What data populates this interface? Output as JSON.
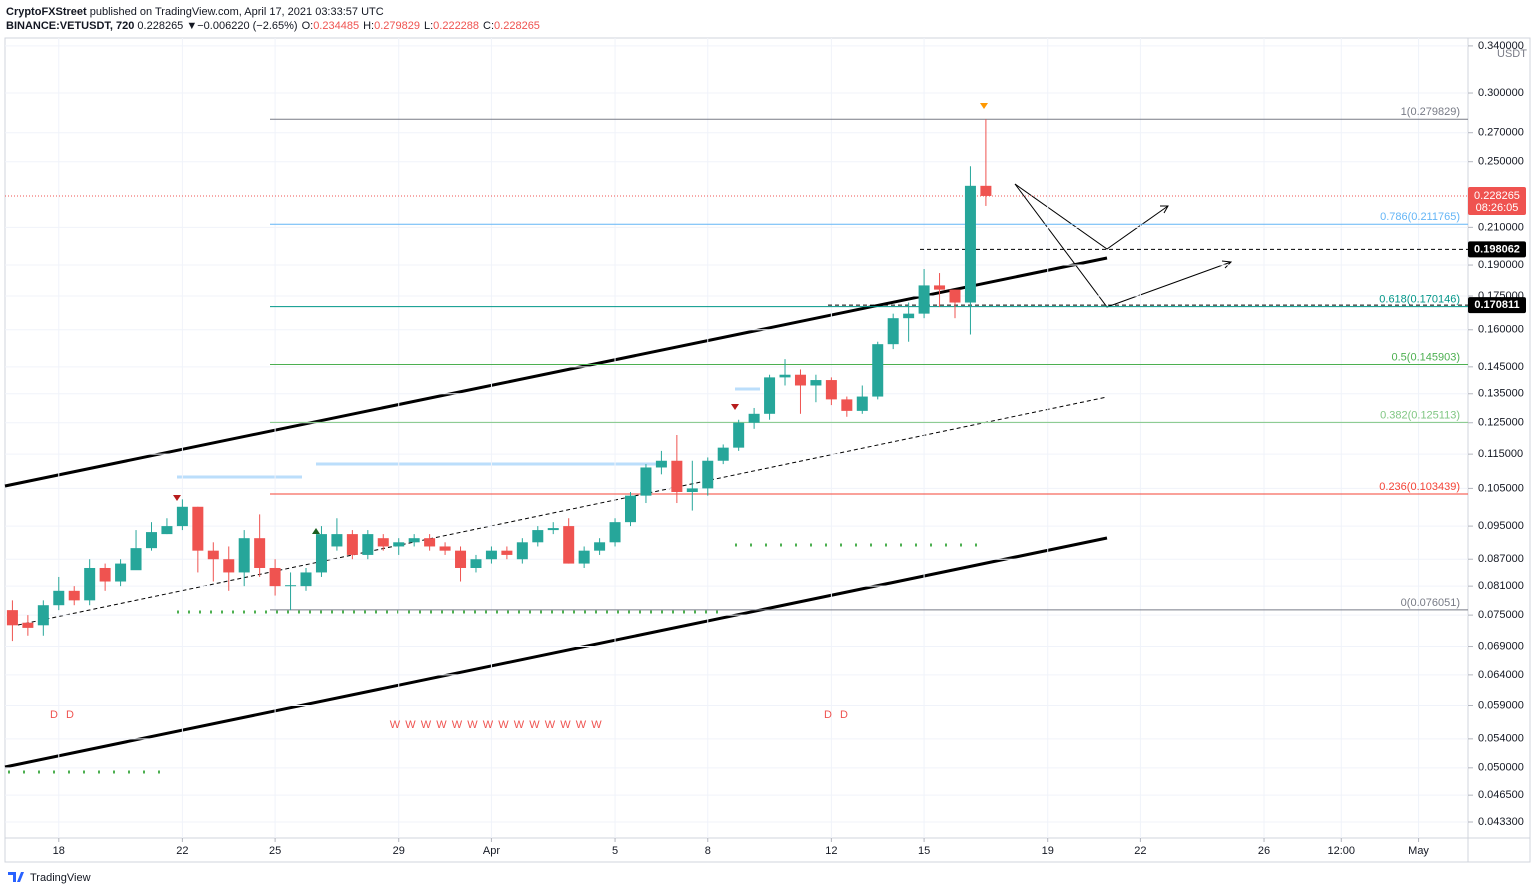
{
  "header": {
    "author": "CryptoFXStreet",
    "published": "published on TradingView.com, April 17, 2021 03:33:57 UTC",
    "symbol": "BINANCE:VETUSDT, 720",
    "last": "0.228265",
    "change": "▼−0.006220 (−2.65%)",
    "ohlc": [
      {
        "key": "O:",
        "value": "0.234485"
      },
      {
        "key": "H:",
        "value": "0.279829"
      },
      {
        "key": "L:",
        "value": "0.222288"
      },
      {
        "key": "C:",
        "value": "0.228265"
      }
    ]
  },
  "chart_data": {
    "type": "candlestick",
    "currency": "USDT",
    "log": true,
    "grid": true,
    "up_color": "#26a69a",
    "down_color": "#ef5350",
    "x": [
      -1.5,
      -1,
      -0.5,
      0,
      0.5,
      1,
      1.5,
      2,
      2.5,
      3,
      3.5,
      4,
      4.5,
      5,
      5.5,
      6,
      6.5,
      7,
      7.5,
      8,
      8.5,
      9,
      9.5,
      10,
      10.5,
      11,
      11.5,
      12,
      12.5,
      13,
      13.5,
      14,
      14.5,
      15,
      15.5,
      16,
      16.5,
      17,
      17.5,
      18,
      18.5,
      19,
      19.5,
      20,
      20.5,
      21,
      21.5,
      22,
      22.5,
      23,
      23.5,
      24,
      24.5,
      25,
      25.5,
      26,
      26.5,
      27,
      27.5,
      28,
      28.5,
      29,
      29.5,
      30
    ],
    "open": [
      0.076,
      0.0735,
      0.073,
      0.077,
      0.08,
      0.078,
      0.085,
      0.082,
      0.0845,
      0.0896,
      0.093,
      0.095,
      0.1,
      0.089,
      0.087,
      0.084,
      0.092,
      0.085,
      0.081,
      0.081,
      0.084,
      0.09,
      0.093,
      0.088,
      0.092,
      0.09,
      0.091,
      0.092,
      0.09,
      0.089,
      0.085,
      0.087,
      0.089,
      0.087,
      0.091,
      0.094,
      0.095,
      0.086,
      0.089,
      0.091,
      0.096,
      0.103,
      0.111,
      0.113,
      0.104,
      0.105,
      0.113,
      0.117,
      0.125,
      0.128,
      0.141,
      0.142,
      0.138,
      0.14,
      0.133,
      0.129,
      0.134,
      0.154,
      0.165,
      0.167,
      0.18,
      0.178,
      0.172,
      0.234485
    ],
    "high": [
      0.078,
      0.075,
      0.078,
      0.083,
      0.081,
      0.087,
      0.086,
      0.087,
      0.094,
      0.096,
      0.097,
      0.102,
      0.1,
      0.091,
      0.09,
      0.094,
      0.098,
      0.087,
      0.084,
      0.085,
      0.095,
      0.097,
      0.094,
      0.094,
      0.093,
      0.092,
      0.093,
      0.093,
      0.091,
      0.09,
      0.088,
      0.09,
      0.09,
      0.092,
      0.095,
      0.096,
      0.097,
      0.09,
      0.092,
      0.097,
      0.104,
      0.112,
      0.116,
      0.121,
      0.113,
      0.114,
      0.118,
      0.126,
      0.13,
      0.142,
      0.148,
      0.144,
      0.142,
      0.141,
      0.134,
      0.138,
      0.155,
      0.167,
      0.172,
      0.188,
      0.186,
      0.178,
      0.247,
      0.279829
    ],
    "low": [
      0.07,
      0.071,
      0.071,
      0.076,
      0.077,
      0.077,
      0.08,
      0.081,
      0.085,
      0.089,
      0.093,
      0.094,
      0.084,
      0.082,
      0.08,
      0.081,
      0.083,
      0.079,
      0.076,
      0.08,
      0.083,
      0.089,
      0.087,
      0.087,
      0.089,
      0.088,
      0.09,
      0.089,
      0.088,
      0.082,
      0.084,
      0.086,
      0.087,
      0.086,
      0.09,
      0.093,
      0.086,
      0.085,
      0.088,
      0.09,
      0.095,
      0.101,
      0.109,
      0.101,
      0.099,
      0.103,
      0.112,
      0.116,
      0.123,
      0.126,
      0.138,
      0.128,
      0.132,
      0.131,
      0.127,
      0.128,
      0.133,
      0.152,
      0.155,
      0.165,
      0.17,
      0.165,
      0.158,
      0.222288
    ],
    "close": [
      0.073,
      0.0725,
      0.077,
      0.08,
      0.078,
      0.085,
      0.082,
      0.086,
      0.0896,
      0.0935,
      0.095,
      0.1,
      0.089,
      0.087,
      0.084,
      0.092,
      0.085,
      0.081,
      0.0812,
      0.084,
      0.093,
      0.093,
      0.088,
      0.093,
      0.09,
      0.091,
      0.092,
      0.09,
      0.089,
      0.085,
      0.087,
      0.089,
      0.088,
      0.091,
      0.094,
      0.0945,
      0.086,
      0.089,
      0.091,
      0.096,
      0.103,
      0.111,
      0.113,
      0.104,
      0.105,
      0.113,
      0.117,
      0.125,
      0.128,
      0.141,
      0.142,
      0.138,
      0.14,
      0.133,
      0.129,
      0.134,
      0.154,
      0.165,
      0.167,
      0.18,
      0.178,
      0.172,
      0.234485,
      0.228265
    ],
    "xlim": [
      -1.74,
      45.6
    ],
    "xticks": [
      {
        "value": 0,
        "label": "18"
      },
      {
        "value": 4,
        "label": "22"
      },
      {
        "value": 7,
        "label": "25"
      },
      {
        "value": 11,
        "label": "29"
      },
      {
        "value": 14,
        "label": "Apr"
      },
      {
        "value": 18,
        "label": "5"
      },
      {
        "value": 21,
        "label": "8"
      },
      {
        "value": 25,
        "label": "12"
      },
      {
        "value": 28,
        "label": "15"
      },
      {
        "value": 32,
        "label": "19"
      },
      {
        "value": 35,
        "label": "22"
      },
      {
        "value": 39,
        "label": "26"
      },
      {
        "value": 41.5,
        "label": "12:00"
      },
      {
        "value": 44,
        "label": "May"
      }
    ],
    "ylim": [
      0.0415,
      0.3472
    ],
    "yticks": [
      {
        "value": 0.34,
        "label": "0.340000"
      },
      {
        "value": 0.3,
        "label": "0.300000"
      },
      {
        "value": 0.27,
        "label": "0.270000"
      },
      {
        "value": 0.25,
        "label": "0.250000"
      },
      {
        "value": 0.21,
        "label": "0.210000"
      },
      {
        "value": 0.19,
        "label": "0.190000"
      },
      {
        "value": 0.175,
        "label": "0.175000"
      },
      {
        "value": 0.16,
        "label": "0.160000"
      },
      {
        "value": 0.145,
        "label": "0.145000"
      },
      {
        "value": 0.135,
        "label": "0.135000"
      },
      {
        "value": 0.125,
        "label": "0.125000"
      },
      {
        "value": 0.115,
        "label": "0.115000"
      },
      {
        "value": 0.105,
        "label": "0.105000"
      },
      {
        "value": 0.095,
        "label": "0.095000"
      },
      {
        "value": 0.087,
        "label": "0.087000"
      },
      {
        "value": 0.081,
        "label": "0.081000"
      },
      {
        "value": 0.075,
        "label": "0.075000"
      },
      {
        "value": 0.069,
        "label": "0.069000"
      },
      {
        "value": 0.064,
        "label": "0.064000"
      },
      {
        "value": 0.059,
        "label": "0.059000"
      },
      {
        "value": 0.054,
        "label": "0.054000"
      },
      {
        "value": 0.05,
        "label": "0.050000"
      },
      {
        "value": 0.0465,
        "label": "0.046500"
      },
      {
        "value": 0.0433,
        "label": "0.043300"
      }
    ],
    "fib_levels": [
      {
        "value": 0.279829,
        "label": "1(0.279829)",
        "color": "#787b86"
      },
      {
        "value": 0.211765,
        "label": "0.786(0.211765)",
        "color": "#64b5f6"
      },
      {
        "value": 0.170146,
        "label": "0.618(0.170146)",
        "color": "#009688"
      },
      {
        "value": 0.145903,
        "label": "0.5(0.145903)",
        "color": "#4caf50"
      },
      {
        "value": 0.125113,
        "label": "0.382(0.125113)",
        "color": "#81c784"
      },
      {
        "value": 0.103439,
        "label": "0.236(0.103439)",
        "color": "#f44336"
      },
      {
        "value": 0.076051,
        "label": "0(0.076051)",
        "color": "#787b86"
      }
    ],
    "last_price": {
      "value": 0.228265,
      "label": "0.228265",
      "countdown": "08:26:05"
    },
    "levels": [
      {
        "value": 0.198062,
        "label": "0.198062"
      },
      {
        "value": 0.170811,
        "label": "0.170811"
      }
    ],
    "d_markers": [
      "D",
      "D",
      "D",
      "D"
    ],
    "w_markers": [
      "W",
      "W",
      "W",
      "W",
      "W",
      "W",
      "W",
      "W",
      "W",
      "W",
      "W",
      "W",
      "W",
      "W"
    ]
  },
  "footer": "TradingView"
}
